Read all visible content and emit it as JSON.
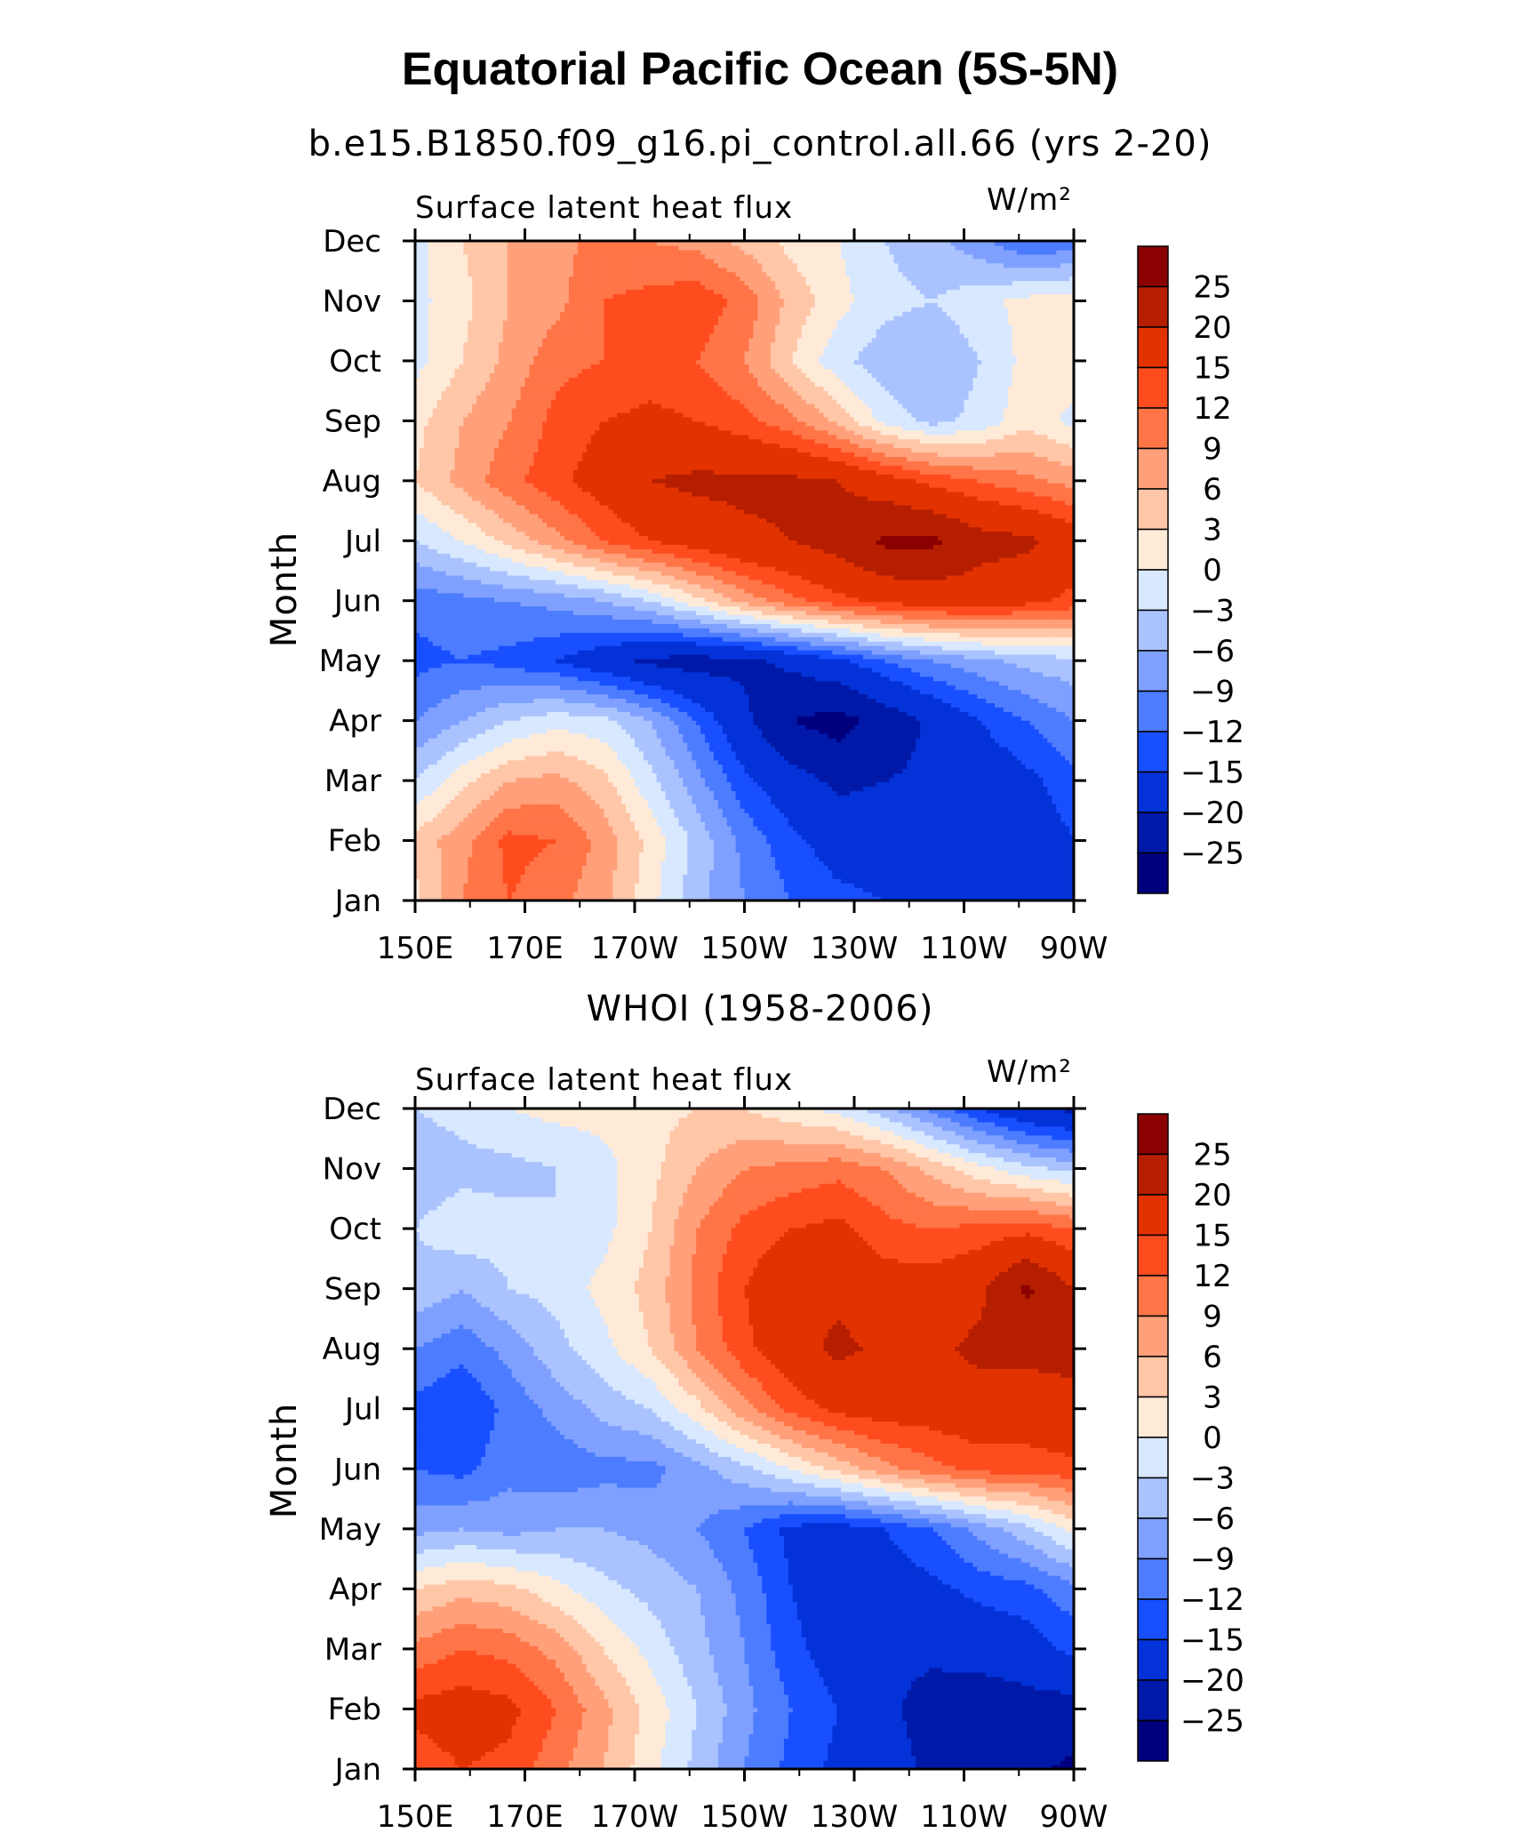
{
  "header": {
    "title": "Equatorial Pacific Ocean (5S-5N)"
  },
  "chart_data": [
    {
      "type": "heatmap",
      "title": "b.e15.B1850.f09_g16.pi_control.all.66 (yrs 2-20)",
      "variable": "Surface latent heat flux",
      "units": "W/m²",
      "ylabel": "Month",
      "xlabel": "",
      "x_ticks": [
        "150E",
        "170E",
        "170W",
        "150W",
        "130W",
        "110W",
        "90W"
      ],
      "y_ticks": [
        "Jan",
        "Feb",
        "Mar",
        "Apr",
        "May",
        "Jun",
        "Jul",
        "Aug",
        "Sep",
        "Oct",
        "Nov",
        "Dec"
      ],
      "x_longitudes_east": [
        150,
        170,
        190,
        210,
        230,
        250,
        270
      ],
      "contour_levels": [
        -25,
        -20,
        -15,
        -12,
        -9,
        -6,
        -3,
        0,
        3,
        6,
        9,
        12,
        15,
        20,
        25
      ],
      "level_labels": [
        "25",
        "20",
        "15",
        "12",
        "9",
        "6",
        "3",
        "0",
        "−3",
        "−6",
        "−9",
        "−12",
        "−15",
        "−20",
        "−25"
      ],
      "colors": [
        "#00007e",
        "#0019a8",
        "#0332d8",
        "#184fff",
        "#4d7cff",
        "#7fa0ff",
        "#aac3ff",
        "#d8e8ff",
        "#ffead8",
        "#ffc6a8",
        "#ffa07a",
        "#ff7547",
        "#ff4c1f",
        "#e23200",
        "#b61e00",
        "#8b0000"
      ],
      "grid": false,
      "legend": "right",
      "values": [
        [
          2,
          9,
          12,
          10,
          7,
          1,
          -5,
          -9,
          -12,
          -14,
          -15,
          -16,
          -15,
          -15,
          -15
        ],
        [
          4,
          8,
          13,
          12,
          8,
          2,
          -4,
          -10,
          -14,
          -17,
          -17,
          -17,
          -16,
          -18,
          -15
        ],
        [
          -3,
          2,
          6,
          7,
          4,
          -2,
          -8,
          -14,
          -18,
          -21,
          -20,
          -19,
          -18,
          -16,
          -13
        ],
        [
          -9,
          -6,
          -3,
          -1,
          -2,
          -6,
          -12,
          -19,
          -25,
          -27,
          -23,
          -19,
          -15,
          -12,
          -9
        ],
        [
          -13,
          -12,
          -13,
          -15,
          -18,
          -21,
          -22,
          -21,
          -19,
          -16,
          -12,
          -9,
          -7,
          -5,
          -4
        ],
        [
          -11,
          -10,
          -9,
          -8,
          -6,
          -3,
          2,
          7,
          11,
          14,
          16,
          17,
          17,
          16,
          14
        ],
        [
          -3,
          0,
          4,
          8,
          12,
          15,
          17,
          19,
          20,
          22,
          26,
          26,
          22,
          21,
          18
        ],
        [
          3,
          7,
          11,
          14,
          17,
          20,
          21,
          21,
          21,
          20,
          17,
          14,
          12,
          10,
          8
        ],
        [
          2,
          6,
          9,
          13,
          15,
          16,
          15,
          13,
          10,
          5,
          -1,
          -4,
          -2,
          2,
          -1
        ],
        [
          -1,
          3,
          7,
          11,
          12,
          13,
          12,
          9,
          3,
          -2,
          -5,
          -6,
          -3,
          1,
          2
        ],
        [
          -1,
          2,
          6,
          8,
          12,
          13,
          14,
          11,
          5,
          1,
          -2,
          -3,
          -1,
          1,
          2
        ],
        [
          -1,
          3,
          6,
          8,
          10,
          9,
          8,
          5,
          2,
          0,
          -3,
          -5,
          -8,
          -12,
          -11
        ]
      ]
    },
    {
      "type": "heatmap",
      "title": "WHOI (1958-2006)",
      "variable": "Surface latent heat flux",
      "units": "W/m²",
      "ylabel": "Month",
      "xlabel": "",
      "x_ticks": [
        "150E",
        "170E",
        "170W",
        "150W",
        "130W",
        "110W",
        "90W"
      ],
      "y_ticks": [
        "Jan",
        "Feb",
        "Mar",
        "Apr",
        "May",
        "Jun",
        "Jul",
        "Aug",
        "Sep",
        "Oct",
        "Nov",
        "Dec"
      ],
      "x_longitudes_east": [
        150,
        170,
        190,
        210,
        230,
        250,
        270
      ],
      "contour_levels": [
        -25,
        -20,
        -15,
        -12,
        -9,
        -6,
        -3,
        0,
        3,
        6,
        9,
        12,
        15,
        20,
        25
      ],
      "level_labels": [
        "25",
        "20",
        "15",
        "12",
        "9",
        "6",
        "3",
        "0",
        "−3",
        "−6",
        "−9",
        "−12",
        "−15",
        "−20",
        "−25"
      ],
      "colors": [
        "#00007e",
        "#0019a8",
        "#0332d8",
        "#184fff",
        "#4d7cff",
        "#7fa0ff",
        "#aac3ff",
        "#d8e8ff",
        "#ffead8",
        "#ffc6a8",
        "#ffa07a",
        "#ff7547",
        "#ff4c1f",
        "#e23200",
        "#b61e00",
        "#8b0000"
      ],
      "grid": false,
      "legend": "right",
      "values": [
        [
          13,
          15,
          14,
          10,
          6,
          1,
          -4,
          -9,
          -13,
          -16,
          -18,
          -21,
          -23,
          -24,
          -26
        ],
        [
          16,
          17,
          16,
          12,
          7,
          2,
          -3,
          -8,
          -12,
          -15,
          -19,
          -22,
          -23,
          -22,
          -22
        ],
        [
          10,
          12,
          11,
          8,
          3,
          -1,
          -5,
          -9,
          -14,
          -17,
          -19,
          -19,
          -18,
          -17,
          -14
        ],
        [
          3,
          5,
          4,
          1,
          -2,
          -4,
          -6,
          -10,
          -15,
          -18,
          -17,
          -16,
          -14,
          -13,
          -10
        ],
        [
          -7,
          -6,
          -7,
          -6,
          -6,
          -7,
          -9,
          -12,
          -16,
          -17,
          -15,
          -12,
          -8,
          -4,
          1
        ],
        [
          -12,
          -13,
          -10,
          -11,
          -10,
          -10,
          -7,
          -4,
          0,
          4,
          8,
          11,
          13,
          13,
          14
        ],
        [
          -13,
          -15,
          -11,
          -8,
          -5,
          -3,
          2,
          8,
          13,
          16,
          17,
          17,
          18,
          18,
          19
        ],
        [
          -9,
          -11,
          -8,
          -4,
          -1,
          3,
          9,
          14,
          18,
          21,
          19,
          19,
          21,
          21,
          21
        ],
        [
          -4,
          -6,
          -3,
          -2,
          1,
          4,
          10,
          15,
          19,
          19,
          17,
          17,
          19,
          26,
          20
        ],
        [
          -3,
          -1,
          -2,
          -3,
          -1,
          3,
          9,
          13,
          15,
          16,
          13,
          12,
          13,
          14,
          12
        ],
        [
          -5,
          -4,
          -4,
          -3,
          -1,
          2,
          6,
          9,
          10,
          11,
          9,
          5,
          1,
          -2,
          -4
        ],
        [
          -3,
          -2,
          0,
          1,
          1,
          2,
          3,
          3,
          1,
          -1,
          -5,
          -10,
          -15,
          -19,
          -21
        ]
      ]
    }
  ]
}
